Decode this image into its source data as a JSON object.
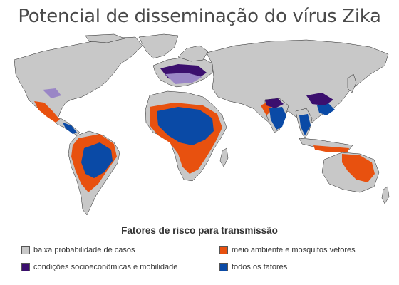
{
  "title": "Potencial de disseminação do vírus Zika",
  "legend": {
    "title": "Fatores de risco para transmissão",
    "items": [
      {
        "key": "low",
        "label": "baixa probabilidade de casos",
        "color": "#c8c8c8"
      },
      {
        "key": "env",
        "label": "meio ambiente e mosquitos vetores",
        "color": "#e8510f"
      },
      {
        "key": "socio",
        "label": "condições socioeconômicas e mobilidade",
        "color": "#3b0f6e"
      },
      {
        "key": "all",
        "label": "todos os fatores",
        "color": "#0a4aa6"
      }
    ]
  },
  "colors": {
    "ocean": "#ffffff",
    "land": "#c8c8c8",
    "border": "#222222",
    "env": "#e8510f",
    "socio": "#3b0f6e",
    "all": "#0a4aa6",
    "socio_light": "#9a86c6"
  }
}
